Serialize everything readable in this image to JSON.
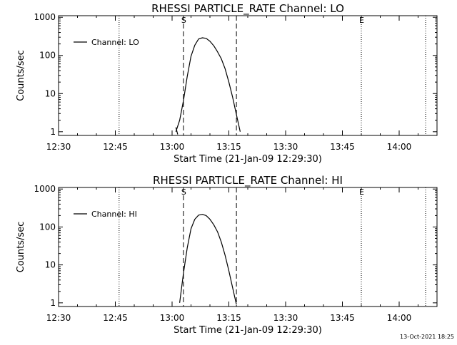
{
  "chart_data": [
    {
      "type": "line",
      "title": "RHESSI PARTICLE_RATE Channel: LO",
      "xlabel": "Start Time (21-Jan-09 12:29:30)",
      "ylabel": "Counts/sec",
      "xlim": [
        "12:30",
        "14:10"
      ],
      "ylim": [
        0.8,
        1100
      ],
      "yscale": "log",
      "x_ticks": [
        "12:30",
        "12:45",
        "13:00",
        "13:15",
        "13:30",
        "13:45",
        "14:00"
      ],
      "y_ticks": [
        "1",
        "10",
        "100",
        "1000"
      ],
      "legend": {
        "entries": [
          "Channel: LO"
        ],
        "placement": "top-left"
      },
      "markers": [
        {
          "label": "S",
          "time": "13:03"
        },
        {
          "label": "E",
          "time": "13:50"
        }
      ],
      "dashed_lines": [
        "13:03",
        "13:17"
      ],
      "dotted_lines": [
        "12:46",
        "13:50",
        "14:07"
      ],
      "series": [
        {
          "name": "Channel: LO",
          "x": [
            "13:01:00",
            "13:02:00",
            "13:03:00",
            "13:04:00",
            "13:05:00",
            "13:06:00",
            "13:07:00",
            "13:08:00",
            "13:09:00",
            "13:10:00",
            "13:11:00",
            "13:12:00",
            "13:13:00",
            "13:14:00",
            "13:15:00",
            "13:16:00",
            "13:17:00",
            "13:18:00"
          ],
          "y": [
            1.0,
            2.0,
            6.5,
            28,
            95,
            185,
            270,
            290,
            280,
            235,
            180,
            125,
            82,
            45,
            20,
            8,
            2.8,
            1.0
          ]
        },
        {
          "name": "",
          "x": [
            "13:01:00",
            "13:01:30"
          ],
          "y": [
            1.3,
            0.85
          ]
        }
      ]
    },
    {
      "type": "line",
      "title": "RHESSI PARTICLE_RATE Channel: HI",
      "xlabel": "Start Time (21-Jan-09 12:29:30)",
      "ylabel": "Counts/sec",
      "xlim": [
        "12:30",
        "14:10"
      ],
      "ylim": [
        0.8,
        1100
      ],
      "yscale": "log",
      "x_ticks": [
        "12:30",
        "12:45",
        "13:00",
        "13:15",
        "13:30",
        "13:45",
        "14:00"
      ],
      "y_ticks": [
        "1",
        "10",
        "100",
        "1000"
      ],
      "legend": {
        "entries": [
          "Channel: HI"
        ],
        "placement": "top-left"
      },
      "markers": [
        {
          "label": "S",
          "time": "13:03"
        },
        {
          "label": "E",
          "time": "13:50"
        }
      ],
      "dashed_lines": [
        "13:03",
        "13:17"
      ],
      "dotted_lines": [
        "12:46",
        "13:50",
        "14:07"
      ],
      "series": [
        {
          "name": "Channel: HI",
          "x": [
            "13:02:00",
            "13:03:00",
            "13:04:00",
            "13:05:00",
            "13:06:00",
            "13:07:00",
            "13:08:00",
            "13:09:00",
            "13:10:00",
            "13:11:00",
            "13:12:00",
            "13:13:00",
            "13:14:00",
            "13:15:00",
            "13:16:00",
            "13:17:00"
          ],
          "y": [
            1.0,
            6.0,
            28,
            90,
            160,
            205,
            215,
            200,
            160,
            115,
            75,
            40,
            18,
            7,
            2.5,
            0.9
          ]
        }
      ]
    }
  ],
  "footer": {
    "timestamp": "13-Oct-2021 18:25"
  }
}
